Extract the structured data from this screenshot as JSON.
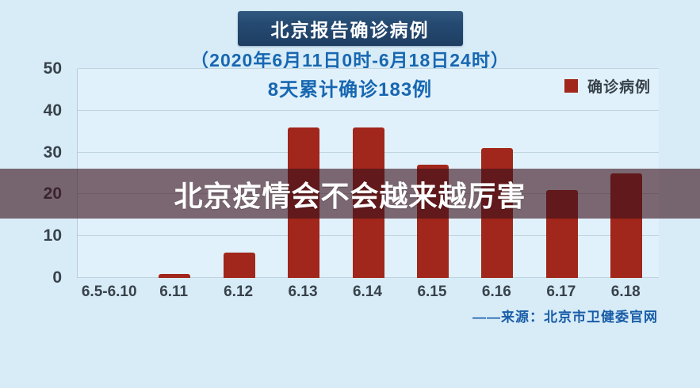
{
  "page": {
    "background": "#d8ecf8"
  },
  "header": {
    "title": "北京报告确诊病例",
    "subtitle": "（2020年6月11日0时-6月18日24时）"
  },
  "overlay": {
    "headline": "北京疫情会不会越来越厉害"
  },
  "source": {
    "text": "——来源：北京市卫健委官网"
  },
  "chart_data": {
    "type": "bar",
    "title": "8天累计确诊183例",
    "categories": [
      "6.5-6.10",
      "6.11",
      "6.12",
      "6.13",
      "6.14",
      "6.15",
      "6.16",
      "6.17",
      "6.18"
    ],
    "values": [
      0,
      1,
      6,
      36,
      36,
      27,
      31,
      21,
      25
    ],
    "total_label": "8天累计确诊183例",
    "cumulative_total": 183,
    "xlabel": "",
    "ylabel": "",
    "ylim": [
      0,
      50
    ],
    "yticks": [
      0,
      10,
      20,
      30,
      40,
      50
    ],
    "grid": true,
    "bar_color": "#a1261b",
    "legend": [
      {
        "label": "确诊病例",
        "color": "#a1261b"
      }
    ],
    "legend_position": "top-right"
  }
}
